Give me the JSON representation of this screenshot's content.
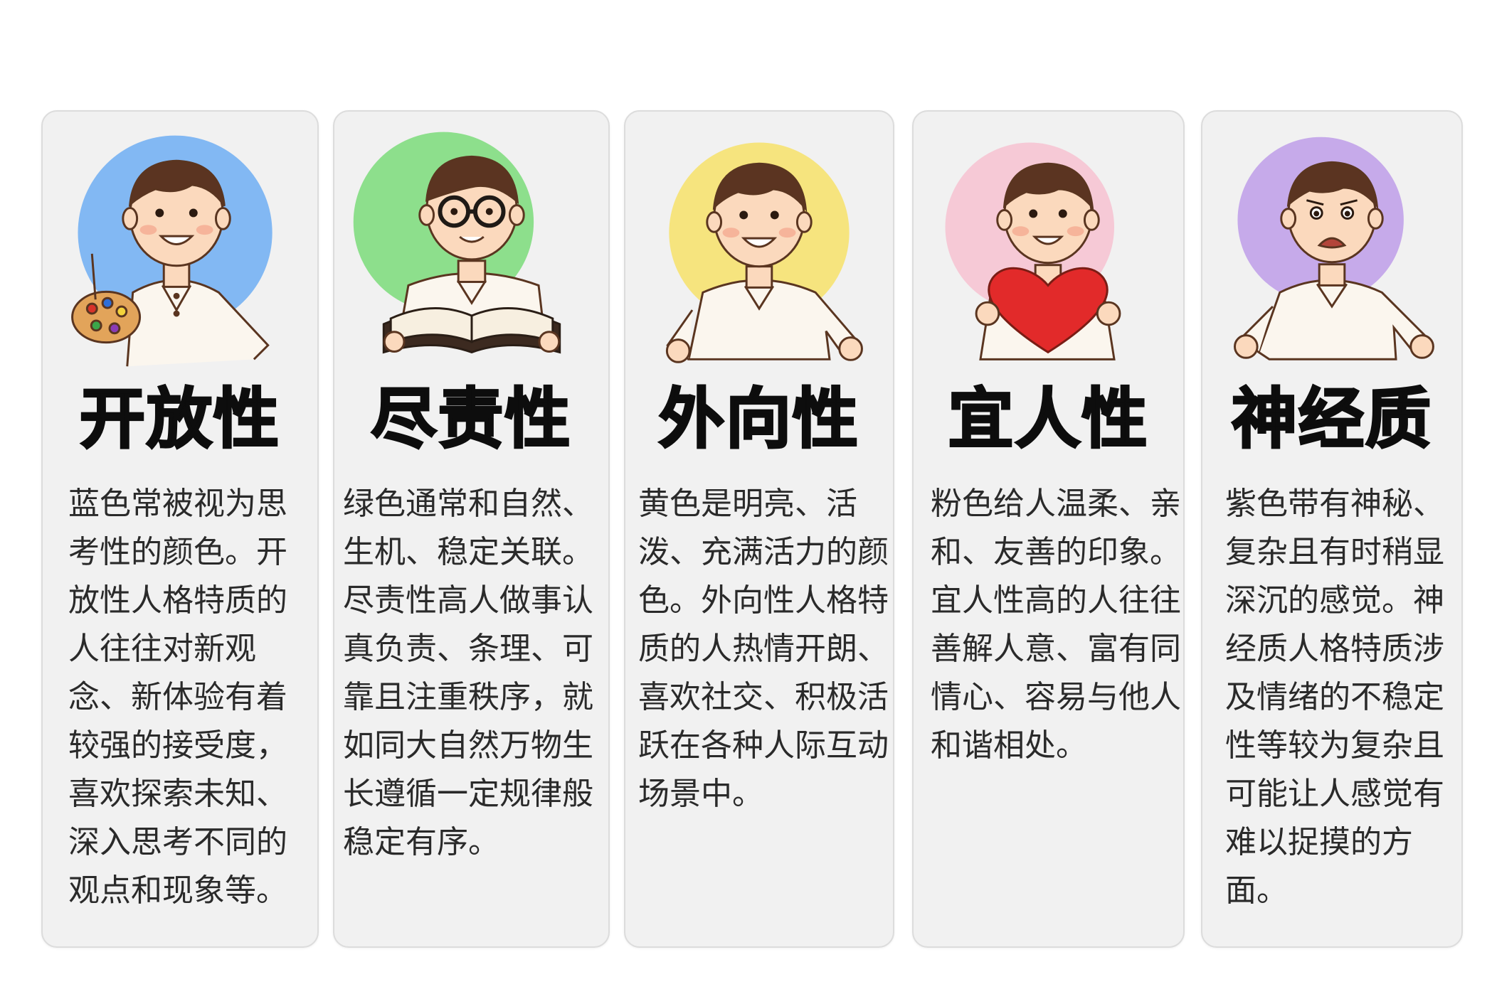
{
  "colors": {
    "openness": "#82b8f3",
    "conscientiousness": "#8ddf8c",
    "extraversion": "#f6e47e",
    "agreeableness": "#f6c9d6",
    "neuroticism": "#c6aaea"
  },
  "cards": [
    {
      "title": "开放性",
      "description": "蓝色常被视为思考性的颜色。开放性人格特质的人往往对新观念、新体验有着较强的接受度，喜欢探索未知、深入思考不同的观点和现象等。",
      "icon": "boy-with-paint-palette"
    },
    {
      "title": "尽责性",
      "description": "绿色通常和自然、生机、稳定关联。尽责性高人做事认真负责、条理、可靠且注重秩序，就如同大自然万物生长遵循一定规律般稳定有序。",
      "icon": "boy-with-open-book"
    },
    {
      "title": "外向性",
      "description": "黄色是明亮、活泼、充满活力的颜色。外向性人格特质的人热情开朗、喜欢社交、积极活跃在各种人际互动场景中。",
      "icon": "smiling-boy"
    },
    {
      "title": "宜人性",
      "description": "粉色给人温柔、亲和、友善的印象。宜人性高的人往往善解人意、富有同情心、容易与他人和谐相处。",
      "icon": "boy-holding-heart"
    },
    {
      "title": "神经质",
      "description": "紫色带有神秘、复杂且有时稍显深沉的感觉。神经质人格特质涉及情绪的不稳定性等较为复杂且可能让人感觉有难以捉摸的方面。",
      "icon": "worried-boy"
    }
  ]
}
